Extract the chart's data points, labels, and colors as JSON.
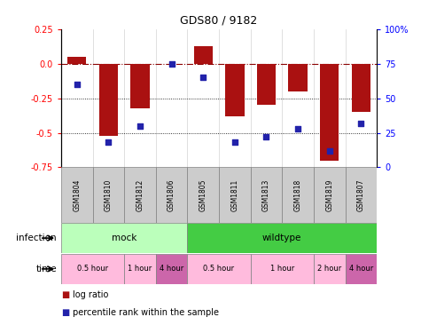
{
  "title": "GDS80 / 9182",
  "samples": [
    "GSM1804",
    "GSM1810",
    "GSM1812",
    "GSM1806",
    "GSM1805",
    "GSM1811",
    "GSM1813",
    "GSM1818",
    "GSM1819",
    "GSM1807"
  ],
  "log_ratio": [
    0.05,
    -0.52,
    -0.32,
    0.0,
    0.13,
    -0.38,
    -0.3,
    -0.2,
    -0.7,
    -0.35
  ],
  "percentile_rank": [
    60,
    18,
    30,
    75,
    65,
    18,
    22,
    28,
    12,
    32
  ],
  "ylim_left": [
    -0.75,
    0.25
  ],
  "ylim_right": [
    0,
    100
  ],
  "yticks_left": [
    0.25,
    0.0,
    -0.25,
    -0.5,
    -0.75
  ],
  "yticks_right": [
    100,
    75,
    50,
    25,
    0
  ],
  "hlines_dotted": [
    -0.25,
    -0.5
  ],
  "hline_dash": 0.0,
  "bar_color": "#AA1111",
  "dot_color": "#2222AA",
  "bar_width": 0.6,
  "infection_groups": [
    {
      "label": "mock",
      "start": 0,
      "end": 4,
      "color": "#AAEEA A"
    },
    {
      "label": "wildtype",
      "start": 4,
      "end": 10,
      "color": "#44CC44"
    }
  ],
  "time_groups": [
    {
      "label": "0.5 hour",
      "start": 0,
      "end": 2,
      "color": "#FFBBDD"
    },
    {
      "label": "1 hour",
      "start": 2,
      "end": 3,
      "color": "#FFBBDD"
    },
    {
      "label": "4 hour",
      "start": 3,
      "end": 4,
      "color": "#CC66AA"
    },
    {
      "label": "0.5 hour",
      "start": 4,
      "end": 6,
      "color": "#FFBBDD"
    },
    {
      "label": "1 hour",
      "start": 6,
      "end": 8,
      "color": "#FFBBDD"
    },
    {
      "label": "2 hour",
      "start": 8,
      "end": 9,
      "color": "#FFBBDD"
    },
    {
      "label": "4 hour",
      "start": 9,
      "end": 10,
      "color": "#CC66AA"
    }
  ],
  "infection_mock_color": "#BBFFBB",
  "infection_wild_color": "#44CC44",
  "time_light_color": "#FFBBDD",
  "time_dark_color": "#CC66AA",
  "legend_items": [
    {
      "label": "log ratio",
      "color": "#AA1111"
    },
    {
      "label": "percentile rank within the sample",
      "color": "#2222AA"
    }
  ]
}
